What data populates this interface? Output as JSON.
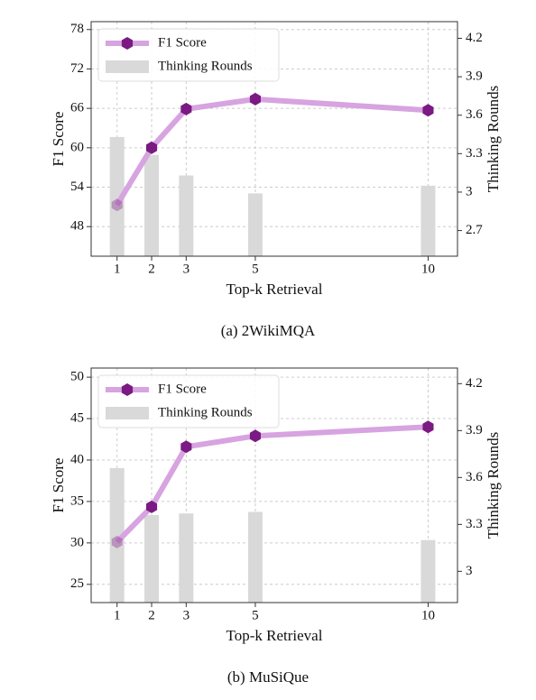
{
  "chart_data": [
    {
      "type": "combo",
      "caption": "(a) 2WikiMQA",
      "xlabel": "Top-k Retrieval",
      "ylabel": "F1 Score",
      "y2label": "Thinking Rounds",
      "x": [
        1,
        2,
        3,
        5,
        10
      ],
      "xlim": [
        0.25,
        10.85
      ],
      "xticks": [
        1,
        2,
        3,
        5,
        10
      ],
      "ylim": [
        43.5,
        79.2
      ],
      "yticks": [
        48,
        54,
        60,
        66,
        72,
        78
      ],
      "y2lim": [
        2.5,
        4.33
      ],
      "y2ticks": [
        2.7,
        3.0,
        3.3,
        3.6,
        3.9,
        4.2
      ],
      "grid": true,
      "legend": "upper left",
      "series": [
        {
          "name": "F1 Score",
          "type": "line",
          "color": "#d7a3e0",
          "marker_color": "#7a1a82",
          "values": [
            51.3,
            60.0,
            65.9,
            67.4,
            65.7
          ]
        },
        {
          "name": "Thinking Rounds",
          "type": "bar",
          "axis": "y2",
          "color": "#d9d9d9",
          "values": [
            3.43,
            3.29,
            3.13,
            2.99,
            3.05
          ]
        }
      ]
    },
    {
      "type": "combo",
      "caption": "(b) MuSiQue",
      "xlabel": "Top-k Retrieval",
      "ylabel": "F1 Score",
      "y2label": "Thinking Rounds",
      "x": [
        1,
        2,
        3,
        5,
        10
      ],
      "xlim": [
        0.25,
        10.85
      ],
      "xticks": [
        1,
        2,
        3,
        5,
        10
      ],
      "ylim": [
        22.8,
        51.1
      ],
      "yticks": [
        25,
        30,
        35,
        40,
        45,
        50
      ],
      "y2lim": [
        2.8,
        4.3
      ],
      "y2ticks": [
        3.0,
        3.3,
        3.6,
        3.9,
        4.2
      ],
      "grid": true,
      "legend": "upper left",
      "series": [
        {
          "name": "F1 Score",
          "type": "line",
          "color": "#d7a3e0",
          "marker_color": "#7a1a82",
          "values": [
            30.1,
            34.35,
            41.6,
            42.9,
            44.0
          ]
        },
        {
          "name": "Thinking Rounds",
          "type": "bar",
          "axis": "y2",
          "color": "#d9d9d9",
          "values": [
            3.66,
            3.36,
            3.37,
            3.38,
            3.2
          ]
        }
      ]
    }
  ]
}
